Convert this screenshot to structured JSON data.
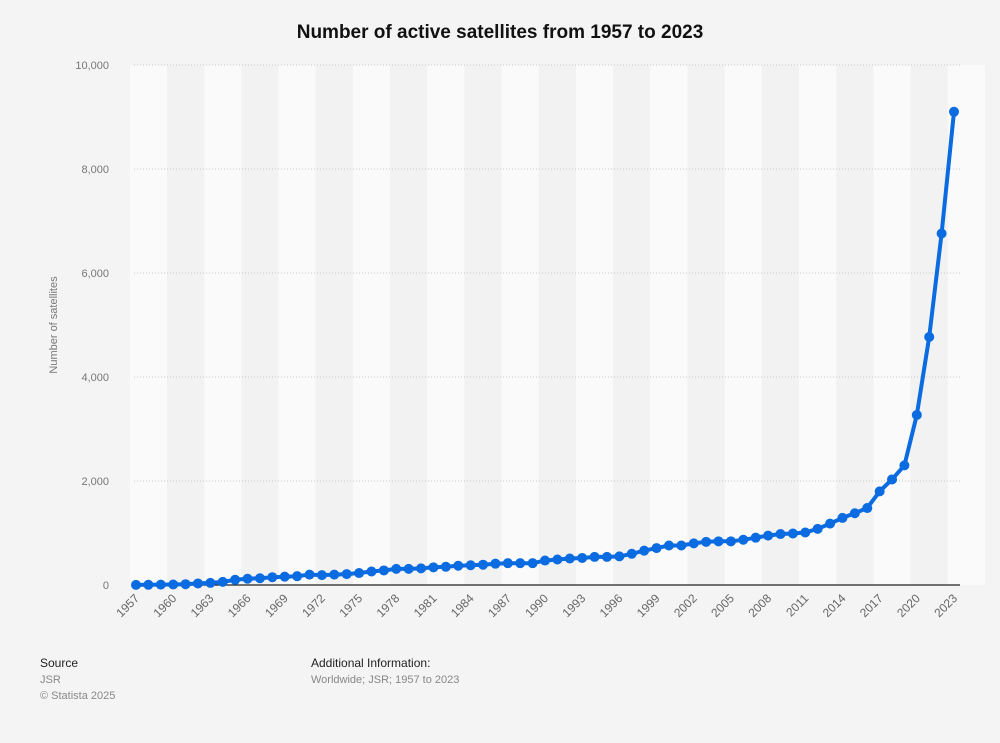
{
  "chart_data": {
    "type": "line",
    "title": "Number of active satellites from 1957 to 2023",
    "xlabel": "",
    "ylabel": "Number of satellites",
    "ylim": [
      0,
      10000
    ],
    "yticks": [
      0,
      2000,
      4000,
      6000,
      8000,
      10000
    ],
    "ytick_labels": [
      "0",
      "2,000",
      "4,000",
      "6,000",
      "8,000",
      "10,000"
    ],
    "xtick_labels": [
      "1957",
      "1960",
      "1963",
      "1966",
      "1969",
      "1972",
      "1975",
      "1978",
      "1981",
      "1984",
      "1987",
      "1990",
      "1993",
      "1996",
      "1999",
      "2002",
      "2005",
      "2008",
      "2011",
      "2014",
      "2017",
      "2020",
      "2023"
    ],
    "grid": true,
    "legend": "none",
    "series": [
      {
        "name": "Number of satellites",
        "color": "#0b6be0",
        "x": [
          1957,
          1958,
          1959,
          1960,
          1961,
          1962,
          1963,
          1964,
          1965,
          1966,
          1967,
          1968,
          1969,
          1970,
          1971,
          1972,
          1973,
          1974,
          1975,
          1976,
          1977,
          1978,
          1979,
          1980,
          1981,
          1982,
          1983,
          1984,
          1985,
          1986,
          1987,
          1988,
          1989,
          1990,
          1991,
          1992,
          1993,
          1994,
          1995,
          1996,
          1997,
          1998,
          1999,
          2000,
          2001,
          2002,
          2003,
          2004,
          2005,
          2006,
          2007,
          2008,
          2009,
          2010,
          2011,
          2012,
          2013,
          2014,
          2015,
          2016,
          2017,
          2018,
          2019,
          2020,
          2021,
          2022,
          2023
        ],
        "values": [
          2,
          4,
          7,
          10,
          15,
          30,
          40,
          60,
          100,
          120,
          130,
          150,
          160,
          170,
          200,
          190,
          200,
          210,
          230,
          260,
          280,
          310,
          310,
          320,
          340,
          350,
          370,
          380,
          390,
          410,
          420,
          420,
          420,
          470,
          490,
          510,
          520,
          540,
          540,
          550,
          600,
          660,
          710,
          760,
          760,
          800,
          830,
          840,
          840,
          870,
          910,
          950,
          980,
          990,
          1010,
          1080,
          1180,
          1290,
          1380,
          1480,
          1800,
          2030,
          2300,
          3270,
          4770,
          6760,
          9100
        ]
      }
    ]
  },
  "footer": {
    "source_label": "Source",
    "source_value": "JSR",
    "copyright": "© Statista 2025",
    "additional_label": "Additional Information:",
    "additional_value": "Worldwide; JSR; 1957 to 2023"
  }
}
